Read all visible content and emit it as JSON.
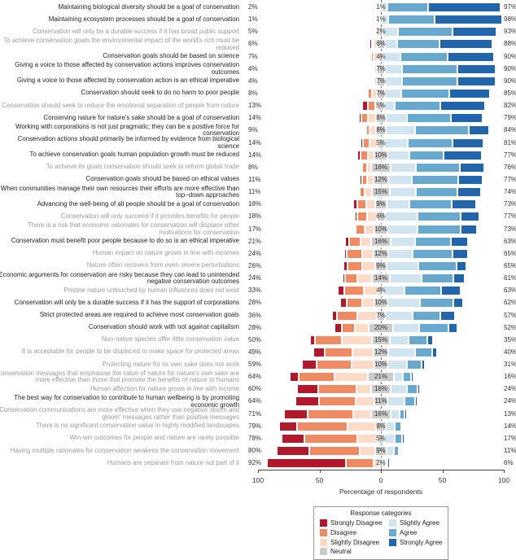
{
  "chart_data": {
    "type": "bar",
    "orientation": "horizontal",
    "stacked": "diverging",
    "xlabel": "Percentage of respondents",
    "xlim": [
      -100,
      100
    ],
    "xticks": [
      "100",
      "50",
      "0",
      "50",
      "100"
    ],
    "legend": {
      "title": "Response categories",
      "placement": "bottom-center"
    },
    "categories_order": [
      "Strongly Disagree",
      "Disagree",
      "Slightly Disagree",
      "Neutral",
      "Slightly Agree",
      "Agree",
      "Strongly Agree"
    ],
    "colors": {
      "Strongly Disagree": "#b2182b",
      "Disagree": "#ef8a62",
      "Slightly Disagree": "#fddbc7",
      "Neutral": "#cccccc",
      "Slightly Agree": "#d1e5f0",
      "Agree": "#67a9cf",
      "Strongly Agree": "#2166ac"
    },
    "label_colors": {
      "bold": "#222222",
      "grey": "#9a9a9a"
    },
    "rows": [
      {
        "label": "Maintaining biological diversity should be a goal of conservation",
        "style": "bold",
        "disagree": "2%",
        "neutral": "1%",
        "agree": "97%",
        "values": [
          1,
          0.5,
          0.5,
          1,
          5,
          33,
          59
        ]
      },
      {
        "label": "Maintaining ecosystem processes should be a goal of conservation",
        "style": "bold",
        "disagree": "1%",
        "neutral": "1%",
        "agree": "98%",
        "values": [
          0.5,
          0.5,
          0,
          1,
          5.5,
          37.5,
          55
        ]
      },
      {
        "label": "Conservation will only be a durable success if it has broad public support",
        "style": "grey",
        "disagree": "5%",
        "neutral": "2%",
        "agree": "93%",
        "values": [
          1,
          1,
          3,
          2,
          13,
          44,
          36
        ]
      },
      {
        "label": "To achieve conservation goals the environmental impact of the world's rich must be reduced",
        "style": "grey",
        "disagree": "6%",
        "neutral": "6%",
        "agree": "88%",
        "values": [
          1.5,
          1.5,
          3,
          6,
          10,
          35,
          43
        ]
      },
      {
        "label": "Conservation goals should be based on science",
        "style": "bold",
        "disagree": "7%",
        "neutral": "4%",
        "agree": "90%",
        "values": [
          1,
          2,
          4,
          4,
          14,
          38,
          38
        ]
      },
      {
        "label": "Giving a voice to those affected by conservation actions improves conservation outcomes",
        "style": "bold",
        "disagree": "4%",
        "neutral": "7%",
        "agree": "90%",
        "values": [
          1,
          1,
          2,
          7,
          14,
          45,
          31
        ]
      },
      {
        "label": "Giving a voice to those affected by conservation action is an ethical imperative",
        "style": "bold",
        "disagree": "4%",
        "neutral": "7%",
        "agree": "90%",
        "values": [
          1,
          1,
          2,
          7,
          14,
          45,
          31
        ]
      },
      {
        "label": "Conservation should seek to do no harm to poor people",
        "style": "bold",
        "disagree": "8%",
        "neutral": "7%",
        "agree": "85%",
        "values": [
          1,
          3,
          4,
          7,
          13,
          39,
          33
        ]
      },
      {
        "label": "Conservation should seek to reduce the emotional separation of people from nature",
        "style": "grey",
        "disagree": "13%",
        "neutral": "5%",
        "agree": "82%",
        "values": [
          5,
          6,
          2,
          5,
          9,
          37,
          36
        ]
      },
      {
        "label": "Conserving nature for nature's sake should be a goal of conservation",
        "style": "bold",
        "disagree": "14%",
        "neutral": "8%",
        "agree": "79%",
        "values": [
          2,
          5.5,
          6.5,
          8,
          17,
          36,
          26
        ]
      },
      {
        "label": "Working with corporations is not just pragmatic; they can be a positive force for conservation",
        "style": "bold",
        "disagree": "9%",
        "neutral": "8%",
        "agree": "84%",
        "values": [
          1,
          3,
          5,
          8,
          24,
          43.5,
          16.5
        ]
      },
      {
        "label": "Conservation actions should primarily be informed by evidence from biological science",
        "style": "bold",
        "disagree": "14%",
        "neutral": "5%",
        "agree": "81%",
        "values": [
          2,
          5.5,
          6.5,
          5,
          19.5,
          36,
          25.5
        ]
      },
      {
        "label": "To achieve conservation goals human population growth must be reduced",
        "style": "bold",
        "disagree": "14%",
        "neutral": "10%",
        "agree": "77%",
        "values": [
          2.5,
          6,
          5.5,
          10,
          18.5,
          27.5,
          31
        ]
      },
      {
        "label": "To achieve its goals conservation should seek to reform global trade",
        "style": "grey",
        "disagree": "8%",
        "neutral": "16%",
        "agree": "76%",
        "values": [
          1,
          3.5,
          3.5,
          16,
          20.5,
          36,
          19.5
        ]
      },
      {
        "label": "Conservation goals should be based on ethical values",
        "style": "bold",
        "disagree": "11%",
        "neutral": "12%",
        "agree": "77%",
        "values": [
          1.5,
          4,
          5.5,
          12,
          19,
          38,
          20
        ]
      },
      {
        "label": "When communities manage their own resources their efforts are more effective than top−down approaches",
        "style": "bold",
        "disagree": "11%",
        "neutral": "15%",
        "agree": "74%",
        "values": [
          1,
          4,
          6,
          15,
          21,
          34,
          19
        ]
      },
      {
        "label": "Advancing the well-being of all people should be a goal of conservation",
        "style": "bold",
        "disagree": "18%",
        "neutral": "9%",
        "agree": "73%",
        "values": [
          3,
          7.5,
          7.5,
          9,
          19,
          34,
          20
        ]
      },
      {
        "label": "Conservation will only succeed if it provides benefits for people",
        "style": "grey",
        "disagree": "18%",
        "neutral": "6%",
        "agree": "77%",
        "values": [
          2,
          8,
          8,
          6,
          27,
          35,
          15
        ]
      },
      {
        "label": "There is a risk that economic rationales for conservation will displace other motivations for conservation",
        "style": "grey",
        "disagree": "17%",
        "neutral": "10%",
        "agree": "73%",
        "values": [
          1.5,
          7.5,
          8,
          10,
          25,
          35,
          13
        ]
      },
      {
        "label": "Conservation must benefit poor people because to do so is an ethical imperative",
        "style": "bold",
        "disagree": "21%",
        "neutral": "16%",
        "agree": "63%",
        "values": [
          3,
          9.5,
          8.5,
          16,
          20,
          29,
          14
        ]
      },
      {
        "label": "Human impact on nature grows in line with incomes",
        "style": "grey",
        "disagree": "24%",
        "neutral": "12%",
        "agree": "65%",
        "values": [
          2.5,
          12,
          9.5,
          12,
          20,
          32,
          13
        ]
      },
      {
        "label": "Nature often recovers from even severe perturbations",
        "style": "grey",
        "disagree": "26%",
        "neutral": "9%",
        "agree": "65%",
        "values": [
          3.5,
          12,
          10.5,
          9,
          26,
          31,
          8
        ]
      },
      {
        "label": "Economic arguments for conservation are risky because they can lead to unintended negative conservation outcomes",
        "style": "bold",
        "disagree": "24%",
        "neutral": "14%",
        "agree": "61%",
        "values": [
          2,
          10,
          12,
          14,
          26,
          26,
          9
        ]
      },
      {
        "label": "Pristine nature untouched by human influences does not exist",
        "style": "grey",
        "disagree": "33%",
        "neutral": "4%",
        "agree": "63%",
        "values": [
          5,
          16,
          12,
          4,
          17,
          30,
          16
        ]
      },
      {
        "label": "Conservation will only be a durable success if it has the support of corporations",
        "style": "bold",
        "disagree": "28%",
        "neutral": "10%",
        "agree": "62%",
        "values": [
          5,
          13,
          10,
          10,
          27,
          27,
          8
        ]
      },
      {
        "label": "Strict protected areas are required to achieve most conservation goals",
        "style": "bold",
        "disagree": "36%",
        "neutral": "7%",
        "agree": "57%",
        "values": [
          4,
          16.5,
          15.5,
          7,
          22,
          23,
          12
        ]
      },
      {
        "label": "Conservation should work with not against capitalism",
        "style": "bold",
        "disagree": "28%",
        "neutral": "20%",
        "agree": "52%",
        "values": [
          6,
          10.5,
          11.5,
          20,
          21,
          24,
          7
        ]
      },
      {
        "label": "Non-native species offer little conservation value",
        "style": "grey",
        "disagree": "50%",
        "neutral": "15%",
        "agree": "35%",
        "values": [
          4,
          22,
          24,
          15,
          15,
          15.5,
          4.5
        ]
      },
      {
        "label": "It is acceptable for people to be displaced to make space for protected areas",
        "style": "grey",
        "disagree": "49%",
        "neutral": "12%",
        "agree": "40%",
        "values": [
          9.5,
          22,
          17.5,
          12,
          21.5,
          14,
          4.5
        ]
      },
      {
        "label": "Protecting nature for its own sake does not work",
        "style": "grey",
        "disagree": "59%",
        "neutral": "10%",
        "agree": "31%",
        "values": [
          12,
          28,
          19,
          10,
          16,
          12,
          3
        ]
      },
      {
        "label": "Conservation messages that emphasise the value of nature for nature's own sake are more effective than those that promote the benefits of nature to humans",
        "style": "grey",
        "disagree": "64%",
        "neutral": "21%",
        "agree": "16%",
        "values": [
          7.5,
          29.5,
          27,
          21,
          7.5,
          6.5,
          2
        ]
      },
      {
        "label": "Human affection for nature grows in line with income",
        "style": "grey",
        "disagree": "60%",
        "neutral": "16%",
        "agree": "24%",
        "values": [
          17,
          31,
          12,
          16,
          13,
          9,
          2
        ]
      },
      {
        "label": "The best way for conservation to contribute to human wellbeing is by promoting economic growth",
        "style": "bold",
        "disagree": "64%",
        "neutral": "11%",
        "agree": "24%",
        "values": [
          19,
          30,
          15,
          11,
          13.5,
          8.5,
          2
        ]
      },
      {
        "label": "Conservation communications are more effective when they use negative 'doom and gloom' messages rather than positive messages",
        "style": "grey",
        "disagree": "71%",
        "neutral": "16%",
        "agree": "13%",
        "values": [
          19.5,
          37,
          14.5,
          16,
          7,
          4.5,
          1.5
        ]
      },
      {
        "label": "There is no significant conservation value in highly modified landscapes",
        "style": "grey",
        "disagree": "79%",
        "neutral": "8%",
        "agree": "14%",
        "values": [
          15,
          41,
          23,
          8,
          7.5,
          5,
          1.5
        ]
      },
      {
        "label": "Win-win outcomes for people and nature are rarely possible",
        "style": "grey",
        "disagree": "78%",
        "neutral": "5%",
        "agree": "17%",
        "values": [
          18.5,
          43,
          16.5,
          5,
          9,
          6,
          2
        ]
      },
      {
        "label": "Having multiple rationales for conservation weakens the conservation movement",
        "style": "grey",
        "disagree": "80%",
        "neutral": "9%",
        "agree": "11%",
        "values": [
          26.5,
          41,
          12.5,
          9,
          6,
          4,
          1
        ]
      },
      {
        "label": "Humans are separate from nature not part of it",
        "style": "grey",
        "disagree": "92%",
        "neutral": "2%",
        "agree": "6%",
        "values": [
          64.5,
          22.5,
          5,
          2,
          3,
          1.5,
          1.5
        ]
      }
    ]
  }
}
